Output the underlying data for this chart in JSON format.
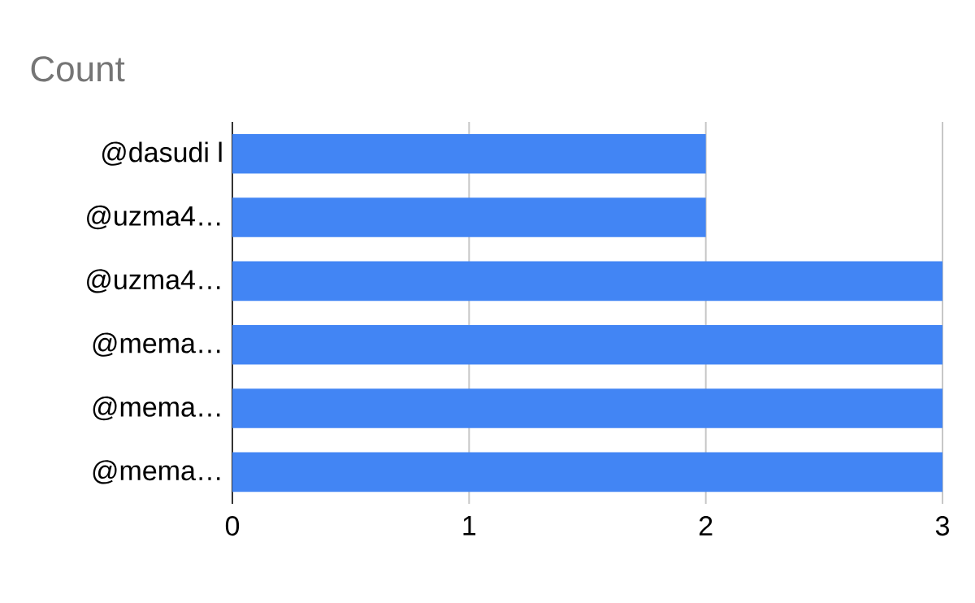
{
  "chart_data": {
    "type": "bar",
    "orientation": "horizontal",
    "title": "Count",
    "categories": [
      "@dasudi l",
      "@uzma4…",
      "@uzma4…",
      "@mema…",
      "@mema…",
      "@mema…"
    ],
    "values": [
      2,
      2,
      3,
      3,
      3,
      3
    ],
    "color": "#4285f4",
    "xlim": [
      0,
      3
    ],
    "xticks": [
      0,
      1,
      2,
      3
    ],
    "grid": "x"
  }
}
